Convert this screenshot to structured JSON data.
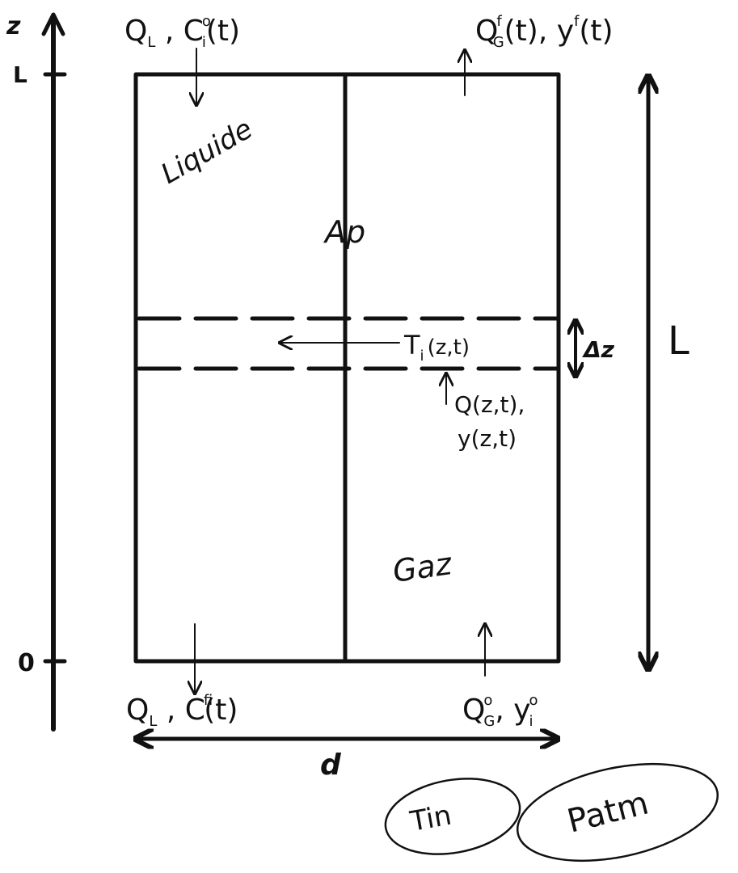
{
  "axis": {
    "name": "z",
    "top_label": "L",
    "bottom_label": "0"
  },
  "regions": {
    "liquid": "Liquide",
    "gas": "Gaz",
    "membrane": "Ap"
  },
  "flows": {
    "liquid_in_Q": "Q",
    "liquid_in_Q_sub": "L",
    "liquid_in_C": "C",
    "liquid_in_C_sup": "o",
    "liquid_in_C_sub": "i",
    "liquid_in_arg": "(t)",
    "gas_out_Q": "Q",
    "gas_out_Q_sup": "f",
    "gas_out_Q_sub": "G",
    "gas_out_arg": "(t), y",
    "gas_out_y_sup": "f",
    "gas_out_y_arg": "(t)",
    "liquid_out_Q": "Q",
    "liquid_out_Q_sub": "L",
    "liquid_out_C": "C",
    "liquid_out_C_sup": "f",
    "liquid_out_C_sub": "i",
    "liquid_out_arg": "(t)",
    "gas_in_Q": "Q",
    "gas_in_Q_sup": "o",
    "gas_in_Q_sub": "G",
    "gas_in_y": "y",
    "gas_in_y_sup": "o",
    "gas_in_y_sub": "i"
  },
  "slice": {
    "transfer": "T",
    "transfer_sub": "i",
    "transfer_arg": "(z,t)",
    "delta": "Δz",
    "q_line1": "Q(z,t),",
    "q_line2": "y(z,t)"
  },
  "dims": {
    "height": "L",
    "width": "d"
  },
  "conditions": {
    "temperature": "Tin",
    "pressure": "Patm"
  }
}
